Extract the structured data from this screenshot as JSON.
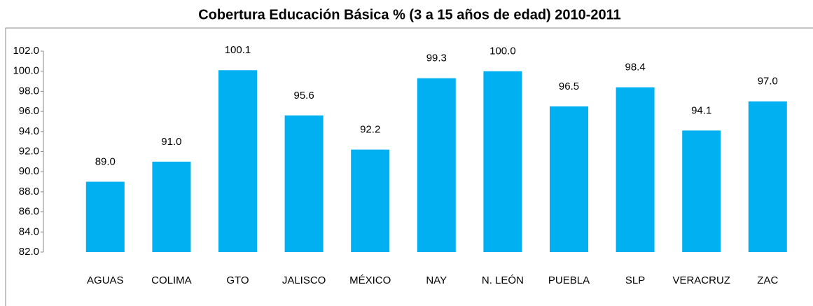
{
  "chart_data": {
    "type": "bar",
    "title": "Cobertura Educación Básica % (3 a 15 años de edad) 2010-2011",
    "categories": [
      "AGUAS",
      "COLIMA",
      "GTO",
      "JALISCO",
      "MÉXICO",
      "NAY",
      "N. LEÓN",
      "PUEBLA",
      "SLP",
      "VERACRUZ",
      "ZAC"
    ],
    "values": [
      89.0,
      91.0,
      100.1,
      95.6,
      92.2,
      99.3,
      100.0,
      96.5,
      98.4,
      94.1,
      97.0
    ],
    "value_labels": [
      "89.0",
      "91.0",
      "100.1",
      "95.6",
      "92.2",
      "99.3",
      "100.0",
      "96.5",
      "98.4",
      "94.1",
      "97.0"
    ],
    "color": "#00b0f0",
    "ylim": [
      82,
      102
    ],
    "yticks": [
      {
        "value": 82,
        "label": "82.0"
      },
      {
        "value": 84,
        "label": "84.0"
      },
      {
        "value": 86,
        "label": "86.0"
      },
      {
        "value": 88,
        "label": "88.0"
      },
      {
        "value": 90,
        "label": "90.0"
      },
      {
        "value": 92,
        "label": "92.0"
      },
      {
        "value": 94,
        "label": "94.0"
      },
      {
        "value": 96,
        "label": "96.0"
      },
      {
        "value": 98,
        "label": "98.0"
      },
      {
        "value": 100,
        "label": "100.0"
      },
      {
        "value": 102,
        "label": "102.0"
      }
    ],
    "grid": false
  }
}
